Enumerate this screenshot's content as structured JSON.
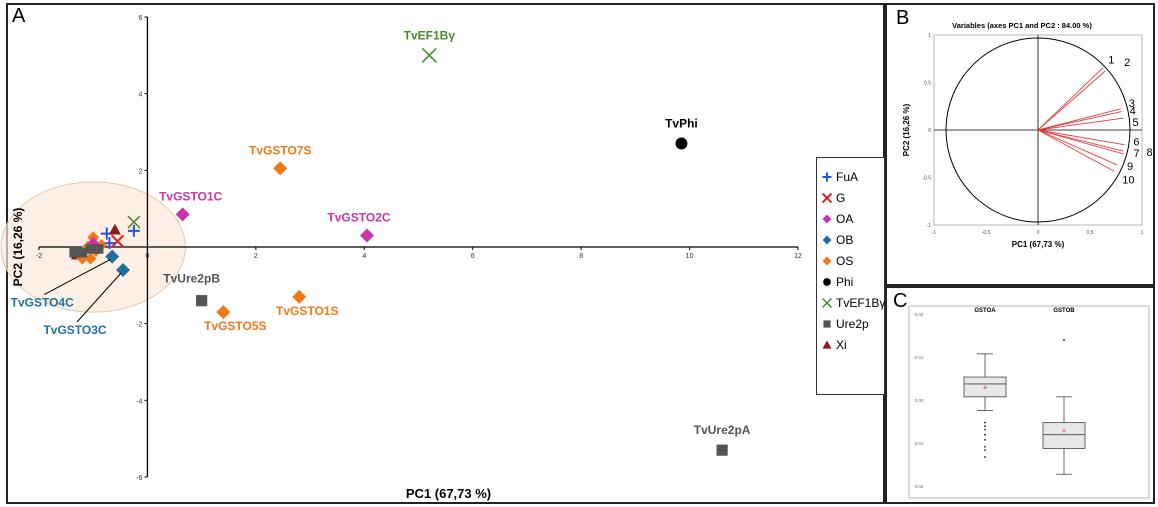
{
  "panels": {
    "a": "A",
    "b": "B",
    "c": "C"
  },
  "chart_data": [
    {
      "type": "scatter",
      "xlabel": "PC1 (67,73 %)",
      "ylabel": "PC2 (16,26 %)",
      "xlim": [
        -2,
        12
      ],
      "ylim": [
        -6,
        6
      ],
      "xticks": [
        "-2",
        "0",
        "2",
        "4",
        "6",
        "8",
        "10",
        "12"
      ],
      "yticks": [
        "-6",
        "-4",
        "-2",
        "0",
        "2",
        "4",
        "6"
      ],
      "colors": {
        "FuA": "#2255dd",
        "G": "#d62728",
        "OA": "#cc33aa",
        "OB": "#1f6fa0",
        "OS": "#f07818",
        "Phi": "#000000",
        "TvEF1Bγ": "#4a8a2a",
        "Ure2p": "#555555",
        "Xi": "#8b1a1a"
      },
      "legend": [
        "FuA",
        "G",
        "OA",
        "OB",
        "OS",
        "Phi",
        "TvEF1Bγ",
        "Ure2p",
        "Xi"
      ],
      "points": [
        {
          "x": 5.2,
          "y": 5.0,
          "group": "TvEF1Bγ",
          "label": "TvEF1Bγ"
        },
        {
          "x": 9.85,
          "y": 2.7,
          "group": "Phi",
          "label": "TvPhi"
        },
        {
          "x": 2.45,
          "y": 2.05,
          "group": "OS",
          "label": "TvGSTO7S"
        },
        {
          "x": 0.65,
          "y": 0.85,
          "group": "OA",
          "label": "TvGSTO1C"
        },
        {
          "x": 4.05,
          "y": 0.3,
          "group": "OA",
          "label": "TvGSTO2C"
        },
        {
          "x": 1.0,
          "y": -1.4,
          "group": "Ure2p",
          "label": "TvUre2pB"
        },
        {
          "x": 1.4,
          "y": -1.7,
          "group": "OS",
          "label": "TvGSTO5S"
        },
        {
          "x": 2.8,
          "y": -1.3,
          "group": "OS",
          "label": "TvGSTO1S"
        },
        {
          "x": 10.6,
          "y": -5.3,
          "group": "Ure2p",
          "label": "TvUre2pA"
        },
        {
          "x": -0.65,
          "y": -0.25,
          "group": "OB",
          "label": "TvGSTO4C"
        },
        {
          "x": -0.45,
          "y": -0.6,
          "group": "OB",
          "label": "TvGSTO3C"
        },
        {
          "x": -0.25,
          "y": 0.65,
          "group": "TvEF1Bγ",
          "label": ""
        },
        {
          "x": -0.75,
          "y": 0.35,
          "group": "FuA",
          "label": ""
        },
        {
          "x": -0.25,
          "y": 0.42,
          "group": "FuA",
          "label": ""
        },
        {
          "x": -0.7,
          "y": 0.1,
          "group": "FuA",
          "label": ""
        },
        {
          "x": -0.55,
          "y": 0.15,
          "group": "G",
          "label": ""
        },
        {
          "x": -0.6,
          "y": 0.45,
          "group": "Xi",
          "label": ""
        },
        {
          "x": -1.3,
          "y": -0.2,
          "group": "Xi",
          "label": ""
        },
        {
          "x": -1.0,
          "y": 0.25,
          "group": "OS",
          "label": ""
        },
        {
          "x": -1.1,
          "y": 0.0,
          "group": "OS",
          "label": ""
        },
        {
          "x": -0.95,
          "y": -0.1,
          "group": "OS",
          "label": ""
        },
        {
          "x": -1.2,
          "y": -0.3,
          "group": "OS",
          "label": ""
        },
        {
          "x": -1.05,
          "y": -0.3,
          "group": "OS",
          "label": ""
        },
        {
          "x": -0.85,
          "y": 0.05,
          "group": "OS",
          "label": ""
        },
        {
          "x": -1.0,
          "y": 0.1,
          "group": "OA",
          "label": ""
        },
        {
          "x": -1.2,
          "y": -0.15,
          "group": "Ure2p",
          "label": ""
        },
        {
          "x": -1.05,
          "y": -0.05,
          "group": "Ure2p",
          "label": ""
        },
        {
          "x": -1.35,
          "y": -0.15,
          "group": "Ure2p",
          "label": ""
        },
        {
          "x": -0.9,
          "y": -0.05,
          "group": "Ure2p",
          "label": ""
        }
      ],
      "highlight_circle": {
        "cx": -1.0,
        "cy": 0.0,
        "r": 1.7
      }
    },
    {
      "type": "scatter",
      "title": "Variables (axes PC1 and PC2 : 84.00 %)",
      "xlabel": "PC1 (67,73 %)",
      "ylabel": "PC2 (16,26 %)",
      "xlim": [
        -1,
        1
      ],
      "ylim": [
        -1,
        1
      ],
      "xticks": [
        "-1",
        "-0,5",
        "0",
        "0,5",
        "1"
      ],
      "yticks": [
        "1",
        "0,5",
        "0",
        "-0,5",
        "-1"
      ],
      "vectors": [
        {
          "label": "1",
          "x": 0.71,
          "y": 0.68
        },
        {
          "label": "2",
          "x": 0.73,
          "y": 0.64
        },
        {
          "label": "3",
          "x": 0.9,
          "y": 0.23
        },
        {
          "label": "4",
          "x": 0.91,
          "y": 0.2
        },
        {
          "label": "5",
          "x": 0.93,
          "y": 0.13
        },
        {
          "label": "6",
          "x": 0.94,
          "y": -0.16
        },
        {
          "label": "7",
          "x": 0.93,
          "y": -0.23
        },
        {
          "label": "8",
          "x": 0.93,
          "y": -0.26
        },
        {
          "label": "9",
          "x": 0.86,
          "y": -0.38
        },
        {
          "label": "10",
          "x": 0.83,
          "y": -0.45
        }
      ]
    },
    {
      "type": "box",
      "categories": [
        "GSTOA",
        "GSTOB"
      ],
      "yticks": [
        "0.02",
        "0.01",
        "0.00",
        "0.01",
        "0.02"
      ],
      "boxes": [
        {
          "name": "GSTOA",
          "whisker_low": 0.45,
          "q1": 0.53,
          "median": 0.605,
          "q3": 0.645,
          "whisker_high": 0.78,
          "mean": 0.585,
          "outliers": [
            0.38,
            0.36,
            0.34,
            0.31,
            0.28,
            0.24,
            0.22,
            0.18
          ]
        },
        {
          "name": "GSTOB",
          "whisker_low": 0.08,
          "q1": 0.23,
          "median": 0.31,
          "q3": 0.38,
          "whisker_high": 0.53,
          "mean": 0.33,
          "outliers": [
            0.86
          ]
        }
      ]
    }
  ]
}
